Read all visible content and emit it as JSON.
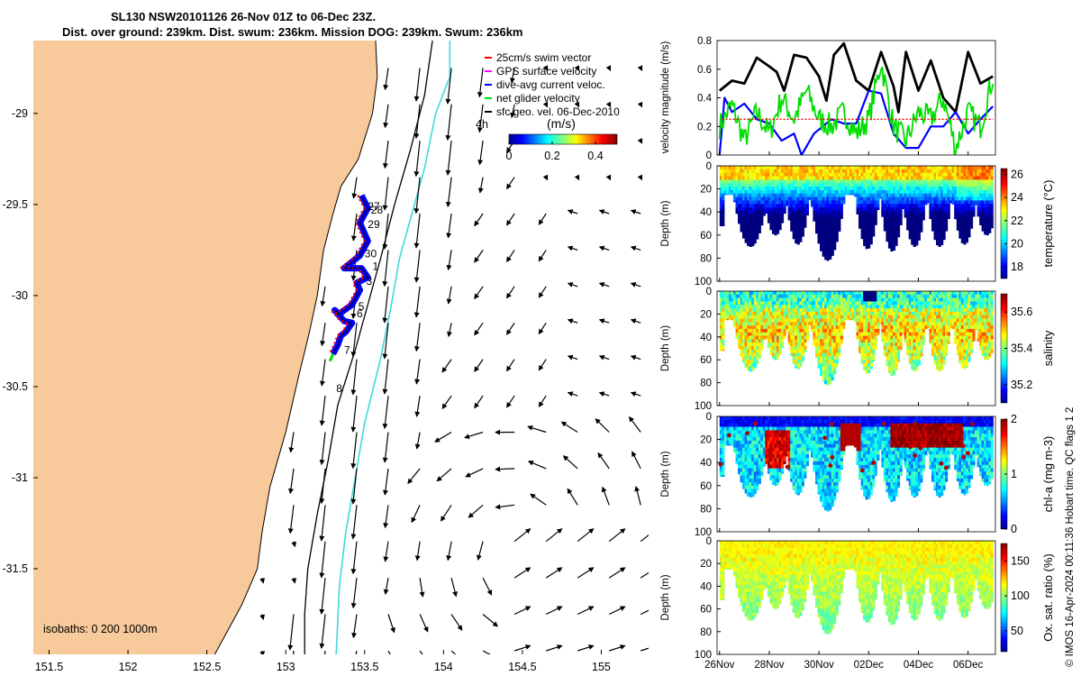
{
  "title": {
    "line1": "SL130 NSW20101126 26-Nov 01Z to 06-Dec 23Z.",
    "line2": "Dist. over ground: 239km. Dist. swum: 236km. Mission DOG: 239km. Swum: 236km"
  },
  "credit": "© IMOS 16-Apr-2024 00:11:36 Hobart time. QC flags 1  2",
  "colors": {
    "land": "#f8c99a",
    "isobath200": "#000000",
    "isobath1000": "#40d8e0",
    "swim": "#ff0000",
    "gps": "#ff00ff",
    "dive": "#0000ff",
    "net": "#00dd00",
    "sfc": "#000000"
  },
  "chart_data": [
    {
      "type": "map",
      "name": "glider-track-map",
      "xlim": [
        151.4,
        155.3
      ],
      "ylim": [
        -31.97,
        -28.6
      ],
      "x_ticks": [
        151.5,
        152,
        152.5,
        153,
        153.5,
        154,
        154.5,
        155
      ],
      "y_ticks": [
        -29,
        -29.5,
        -30,
        -30.5,
        -31,
        -31.5
      ],
      "x_tick_labels": [
        "151.5",
        "152",
        "152.5",
        "153",
        "153.5",
        "154",
        "154.5",
        "155"
      ],
      "y_tick_labels": [
        "-29",
        "-29.5",
        "-30",
        "-30.5",
        "-31",
        "-31.5"
      ],
      "isobath_label": "isobaths: 0   200  1000m",
      "legend": [
        {
          "label": "25cm/s swim vector",
          "color": "#ff0000"
        },
        {
          "label": "GPS surface velocity",
          "color": "#ff00ff"
        },
        {
          "label": "dive-avg current veloc.",
          "color": "#0000ff"
        },
        {
          "label": "net glider velocity",
          "color": "#00dd00"
        },
        {
          "label": "sfc geo. vel. 06-Dec-2010",
          "color": "#000000"
        }
      ],
      "legend_extra": "4h",
      "colorbar": {
        "label": "(m/s)",
        "ticks": [
          "0",
          "0.2",
          "0.4"
        ],
        "range": [
          0,
          0.5
        ]
      },
      "coastline": [
        [
          153.57,
          -28.6
        ],
        [
          153.58,
          -28.8
        ],
        [
          153.55,
          -29.0
        ],
        [
          153.46,
          -29.25
        ],
        [
          153.35,
          -29.4
        ],
        [
          153.3,
          -29.55
        ],
        [
          153.24,
          -29.75
        ],
        [
          153.2,
          -30.0
        ],
        [
          153.15,
          -30.2
        ],
        [
          153.08,
          -30.45
        ],
        [
          153.0,
          -30.75
        ],
        [
          152.9,
          -31.05
        ],
        [
          152.85,
          -31.3
        ],
        [
          152.82,
          -31.5
        ],
        [
          152.72,
          -31.7
        ],
        [
          152.55,
          -31.97
        ]
      ],
      "isobath_200": [
        [
          153.93,
          -28.6
        ],
        [
          153.88,
          -28.9
        ],
        [
          153.79,
          -29.2
        ],
        [
          153.69,
          -29.5
        ],
        [
          153.6,
          -29.8
        ],
        [
          153.52,
          -30.05
        ],
        [
          153.44,
          -30.3
        ],
        [
          153.33,
          -30.6
        ],
        [
          153.27,
          -30.9
        ],
        [
          153.2,
          -31.2
        ],
        [
          153.14,
          -31.5
        ],
        [
          153.12,
          -31.75
        ],
        [
          153.12,
          -31.97
        ]
      ],
      "isobath_1000": [
        [
          154.04,
          -28.6
        ],
        [
          154.04,
          -28.8
        ],
        [
          153.95,
          -29.0
        ],
        [
          153.88,
          -29.3
        ],
        [
          153.8,
          -29.55
        ],
        [
          153.72,
          -29.8
        ],
        [
          153.67,
          -30.05
        ],
        [
          153.6,
          -30.35
        ],
        [
          153.5,
          -30.7
        ],
        [
          153.44,
          -31.0
        ],
        [
          153.38,
          -31.3
        ],
        [
          153.34,
          -31.6
        ],
        [
          153.32,
          -31.97
        ]
      ],
      "track": [
        [
          153.48,
          -29.45
        ],
        [
          153.52,
          -29.52
        ],
        [
          153.47,
          -29.6
        ],
        [
          153.52,
          -29.7
        ],
        [
          153.47,
          -29.78
        ],
        [
          153.37,
          -29.85
        ],
        [
          153.48,
          -29.85
        ],
        [
          153.52,
          -29.9
        ],
        [
          153.45,
          -29.93
        ],
        [
          153.47,
          -29.97
        ],
        [
          153.42,
          -30.05
        ],
        [
          153.34,
          -30.1
        ],
        [
          153.31,
          -30.08
        ],
        [
          153.37,
          -30.14
        ],
        [
          153.42,
          -30.15
        ],
        [
          153.38,
          -30.2
        ],
        [
          153.35,
          -30.22
        ],
        [
          153.33,
          -30.27
        ],
        [
          153.3,
          -30.32
        ]
      ],
      "day_labels": [
        {
          "text": "27",
          "lon": 153.52,
          "lat": -29.53
        },
        {
          "text": "28",
          "lon": 153.54,
          "lat": -29.55
        },
        {
          "text": "29",
          "lon": 153.52,
          "lat": -29.63
        },
        {
          "text": "30",
          "lon": 153.5,
          "lat": -29.79
        },
        {
          "text": "1",
          "lon": 153.55,
          "lat": -29.86
        },
        {
          "text": "3",
          "lon": 153.51,
          "lat": -29.94
        },
        {
          "text": "5",
          "lon": 153.46,
          "lat": -30.08
        },
        {
          "text": "6",
          "lon": 153.45,
          "lat": -30.12
        },
        {
          "text": "7",
          "lon": 153.37,
          "lat": -30.32
        },
        {
          "text": "8",
          "lon": 153.32,
          "lat": -30.53
        }
      ]
    },
    {
      "type": "line",
      "name": "velocity-magnitude",
      "ylabel": "velocity magnitude (m/s)",
      "ylim": [
        0,
        0.8
      ],
      "y_ticks": [
        "0",
        "0.2",
        "0.4",
        "0.6",
        "0.8"
      ],
      "series": [
        {
          "name": "sfc geo. vel.",
          "color": "#000000",
          "x": [
            0,
            0.5,
            1,
            1.5,
            2,
            2.3,
            2.6,
            3,
            3.5,
            4,
            4.3,
            4.6,
            5,
            5.5,
            6,
            6.5,
            7,
            7.2,
            7.5,
            8,
            8.5,
            9,
            9.5,
            10,
            10.5,
            11
          ],
          "values": [
            0.45,
            0.52,
            0.5,
            0.68,
            0.62,
            0.58,
            0.45,
            0.7,
            0.68,
            0.55,
            0.38,
            0.7,
            0.78,
            0.52,
            0.45,
            0.72,
            0.48,
            0.3,
            0.72,
            0.45,
            0.66,
            0.4,
            0.3,
            0.72,
            0.5,
            0.55
          ]
        },
        {
          "name": "dive-avg current veloc.",
          "color": "#0000ff",
          "x": [
            0,
            0.2,
            0.5,
            1,
            1.5,
            2,
            2.5,
            3,
            3.3,
            3.8,
            4.5,
            5,
            5.5,
            6,
            6.5,
            7,
            7.5,
            8,
            8.5,
            9,
            9.5,
            10,
            10.5,
            11
          ],
          "values": [
            0,
            0.4,
            0.3,
            0.36,
            0.25,
            0.22,
            0.1,
            0.15,
            0.0,
            0.15,
            0.25,
            0.22,
            0.22,
            0.45,
            0.43,
            0.15,
            0.05,
            0.05,
            0.2,
            0.2,
            0.3,
            0.15,
            0.25,
            0.34
          ]
        },
        {
          "name": "net glider velocity",
          "color": "#00dd00",
          "x": [
            0,
            0.5,
            1,
            1.5,
            2,
            2.5,
            3,
            3.5,
            4,
            4.5,
            5,
            5.5,
            6,
            6.5,
            7,
            7.5,
            8,
            8.5,
            9,
            9.5,
            10,
            10.5,
            11
          ],
          "values": [
            0.2,
            0.35,
            0.1,
            0.3,
            0.15,
            0.4,
            0.25,
            0.45,
            0.25,
            0.2,
            0.3,
            0.15,
            0.25,
            0.65,
            0.2,
            0.1,
            0.3,
            0.25,
            0.4,
            0.05,
            0.3,
            0.2,
            0.55
          ]
        },
        {
          "name": "25cm/s swim",
          "color": "#ff0000",
          "x": [
            0,
            11
          ],
          "values": [
            0.25,
            0.25
          ]
        }
      ]
    },
    {
      "type": "heatmap",
      "name": "temperature-section",
      "ylabel": "Depth (m)",
      "cb_label": "temperature (°C)",
      "cb_ticks": [
        "26",
        "24",
        "22",
        "20",
        "18"
      ],
      "cb_range": [
        17,
        26.5
      ],
      "y_ticks": [
        "0",
        "20",
        "40",
        "60",
        "80",
        "100"
      ],
      "ylim": [
        0,
        100
      ]
    },
    {
      "type": "heatmap",
      "name": "salinity-section",
      "ylabel": "Depth (m)",
      "cb_label": "salinity",
      "cb_ticks": [
        "35.6",
        "35.4",
        "35.2"
      ],
      "cb_range": [
        35.1,
        35.7
      ],
      "y_ticks": [
        "0",
        "20",
        "40",
        "60",
        "80",
        "100"
      ],
      "ylim": [
        0,
        100
      ]
    },
    {
      "type": "heatmap",
      "name": "chlorophyll-section",
      "ylabel": "Depth (m)",
      "cb_label": "chl-a (mg m-3)",
      "cb_ticks": [
        "2",
        "1",
        "0"
      ],
      "cb_range": [
        0,
        2
      ],
      "y_ticks": [
        "0",
        "20",
        "40",
        "60",
        "80",
        "100"
      ],
      "ylim": [
        0,
        100
      ]
    },
    {
      "type": "heatmap",
      "name": "oxygen-section",
      "ylabel": "Depth (m)",
      "cb_label": "Ox. sat. ratio (%)",
      "cb_ticks": [
        "150",
        "100",
        "50"
      ],
      "cb_range": [
        20,
        175
      ],
      "y_ticks": [
        "0",
        "20",
        "40",
        "60",
        "80",
        "100"
      ],
      "ylim": [
        0,
        100
      ]
    },
    {
      "type": "time-axis",
      "name": "shared-time-axis",
      "x_tick_labels": [
        "26Nov",
        "28Nov",
        "30Nov",
        "02Dec",
        "04Dec",
        "06Dec"
      ],
      "x_ticks_days": [
        0,
        2,
        4,
        6,
        8,
        10
      ],
      "xlim_days": [
        -0.1,
        11.1
      ]
    }
  ]
}
